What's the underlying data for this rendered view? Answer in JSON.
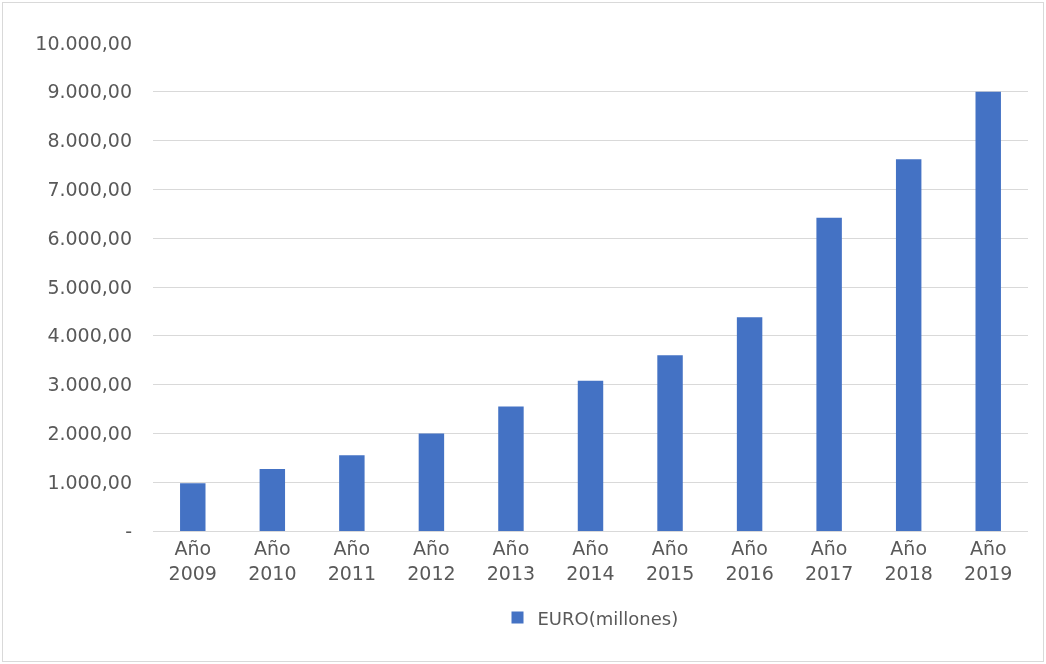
{
  "chart_data": {
    "type": "bar",
    "categories": [
      "Año 2009",
      "Año 2010",
      "Año 2011",
      "Año 2012",
      "Año 2013",
      "Año 2014",
      "Año 2015",
      "Año 2016",
      "Año 2017",
      "Año 2018",
      "Año 2019"
    ],
    "series": [
      {
        "name": "EURO(millones)",
        "color": "#4472c4",
        "values": [
          980,
          1270,
          1550,
          2000,
          2550,
          3080,
          3600,
          4380,
          6420,
          7620,
          9000
        ]
      }
    ],
    "ylim": [
      0,
      10000
    ],
    "yticks": [
      {
        "value": 0,
        "label": "-"
      },
      {
        "value": 1000,
        "label": "1.000,00"
      },
      {
        "value": 2000,
        "label": "2.000,00"
      },
      {
        "value": 3000,
        "label": "3.000,00"
      },
      {
        "value": 4000,
        "label": "4.000,00"
      },
      {
        "value": 5000,
        "label": "5.000,00"
      },
      {
        "value": 6000,
        "label": "6.000,00"
      },
      {
        "value": 7000,
        "label": "7.000,00"
      },
      {
        "value": 8000,
        "label": "8.000,00"
      },
      {
        "value": 9000,
        "label": "9.000,00"
      },
      {
        "value": 10000,
        "label": "10.000,00"
      }
    ],
    "grid": "y",
    "legend": "bottom"
  }
}
